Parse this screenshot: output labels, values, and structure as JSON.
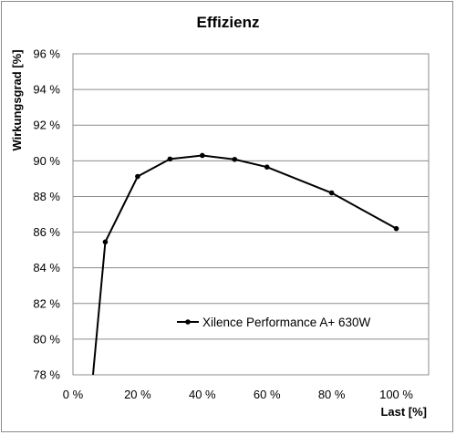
{
  "chart_data": {
    "type": "line",
    "title": "Effizienz",
    "xlabel": "Last [%]",
    "ylabel": "Wirkungsgrad [%]",
    "xlim": [
      0,
      110
    ],
    "ylim": [
      78,
      96
    ],
    "x_ticks": [
      0,
      20,
      40,
      60,
      80,
      100
    ],
    "x_tick_labels": [
      "0 %",
      "20 %",
      "40 %",
      "60 %",
      "80 %",
      "100 %"
    ],
    "y_ticks": [
      78,
      80,
      82,
      84,
      86,
      88,
      90,
      92,
      94,
      96
    ],
    "y_tick_labels": [
      "78 %",
      "80 %",
      "82 %",
      "84 %",
      "86 %",
      "88 %",
      "90 %",
      "92 %",
      "94 %",
      "96 %"
    ],
    "grid": "horizontal",
    "legend_position": "lower-right",
    "series": [
      {
        "name": "Xilence Performance A+ 630W",
        "color": "#000000",
        "x": [
          6.2,
          10,
          20,
          30,
          40,
          50,
          60,
          80,
          100
        ],
        "y": [
          78,
          85.45,
          89.12,
          90.1,
          90.3,
          90.08,
          89.65,
          88.2,
          86.2
        ],
        "marker_from_index": 1
      }
    ]
  }
}
